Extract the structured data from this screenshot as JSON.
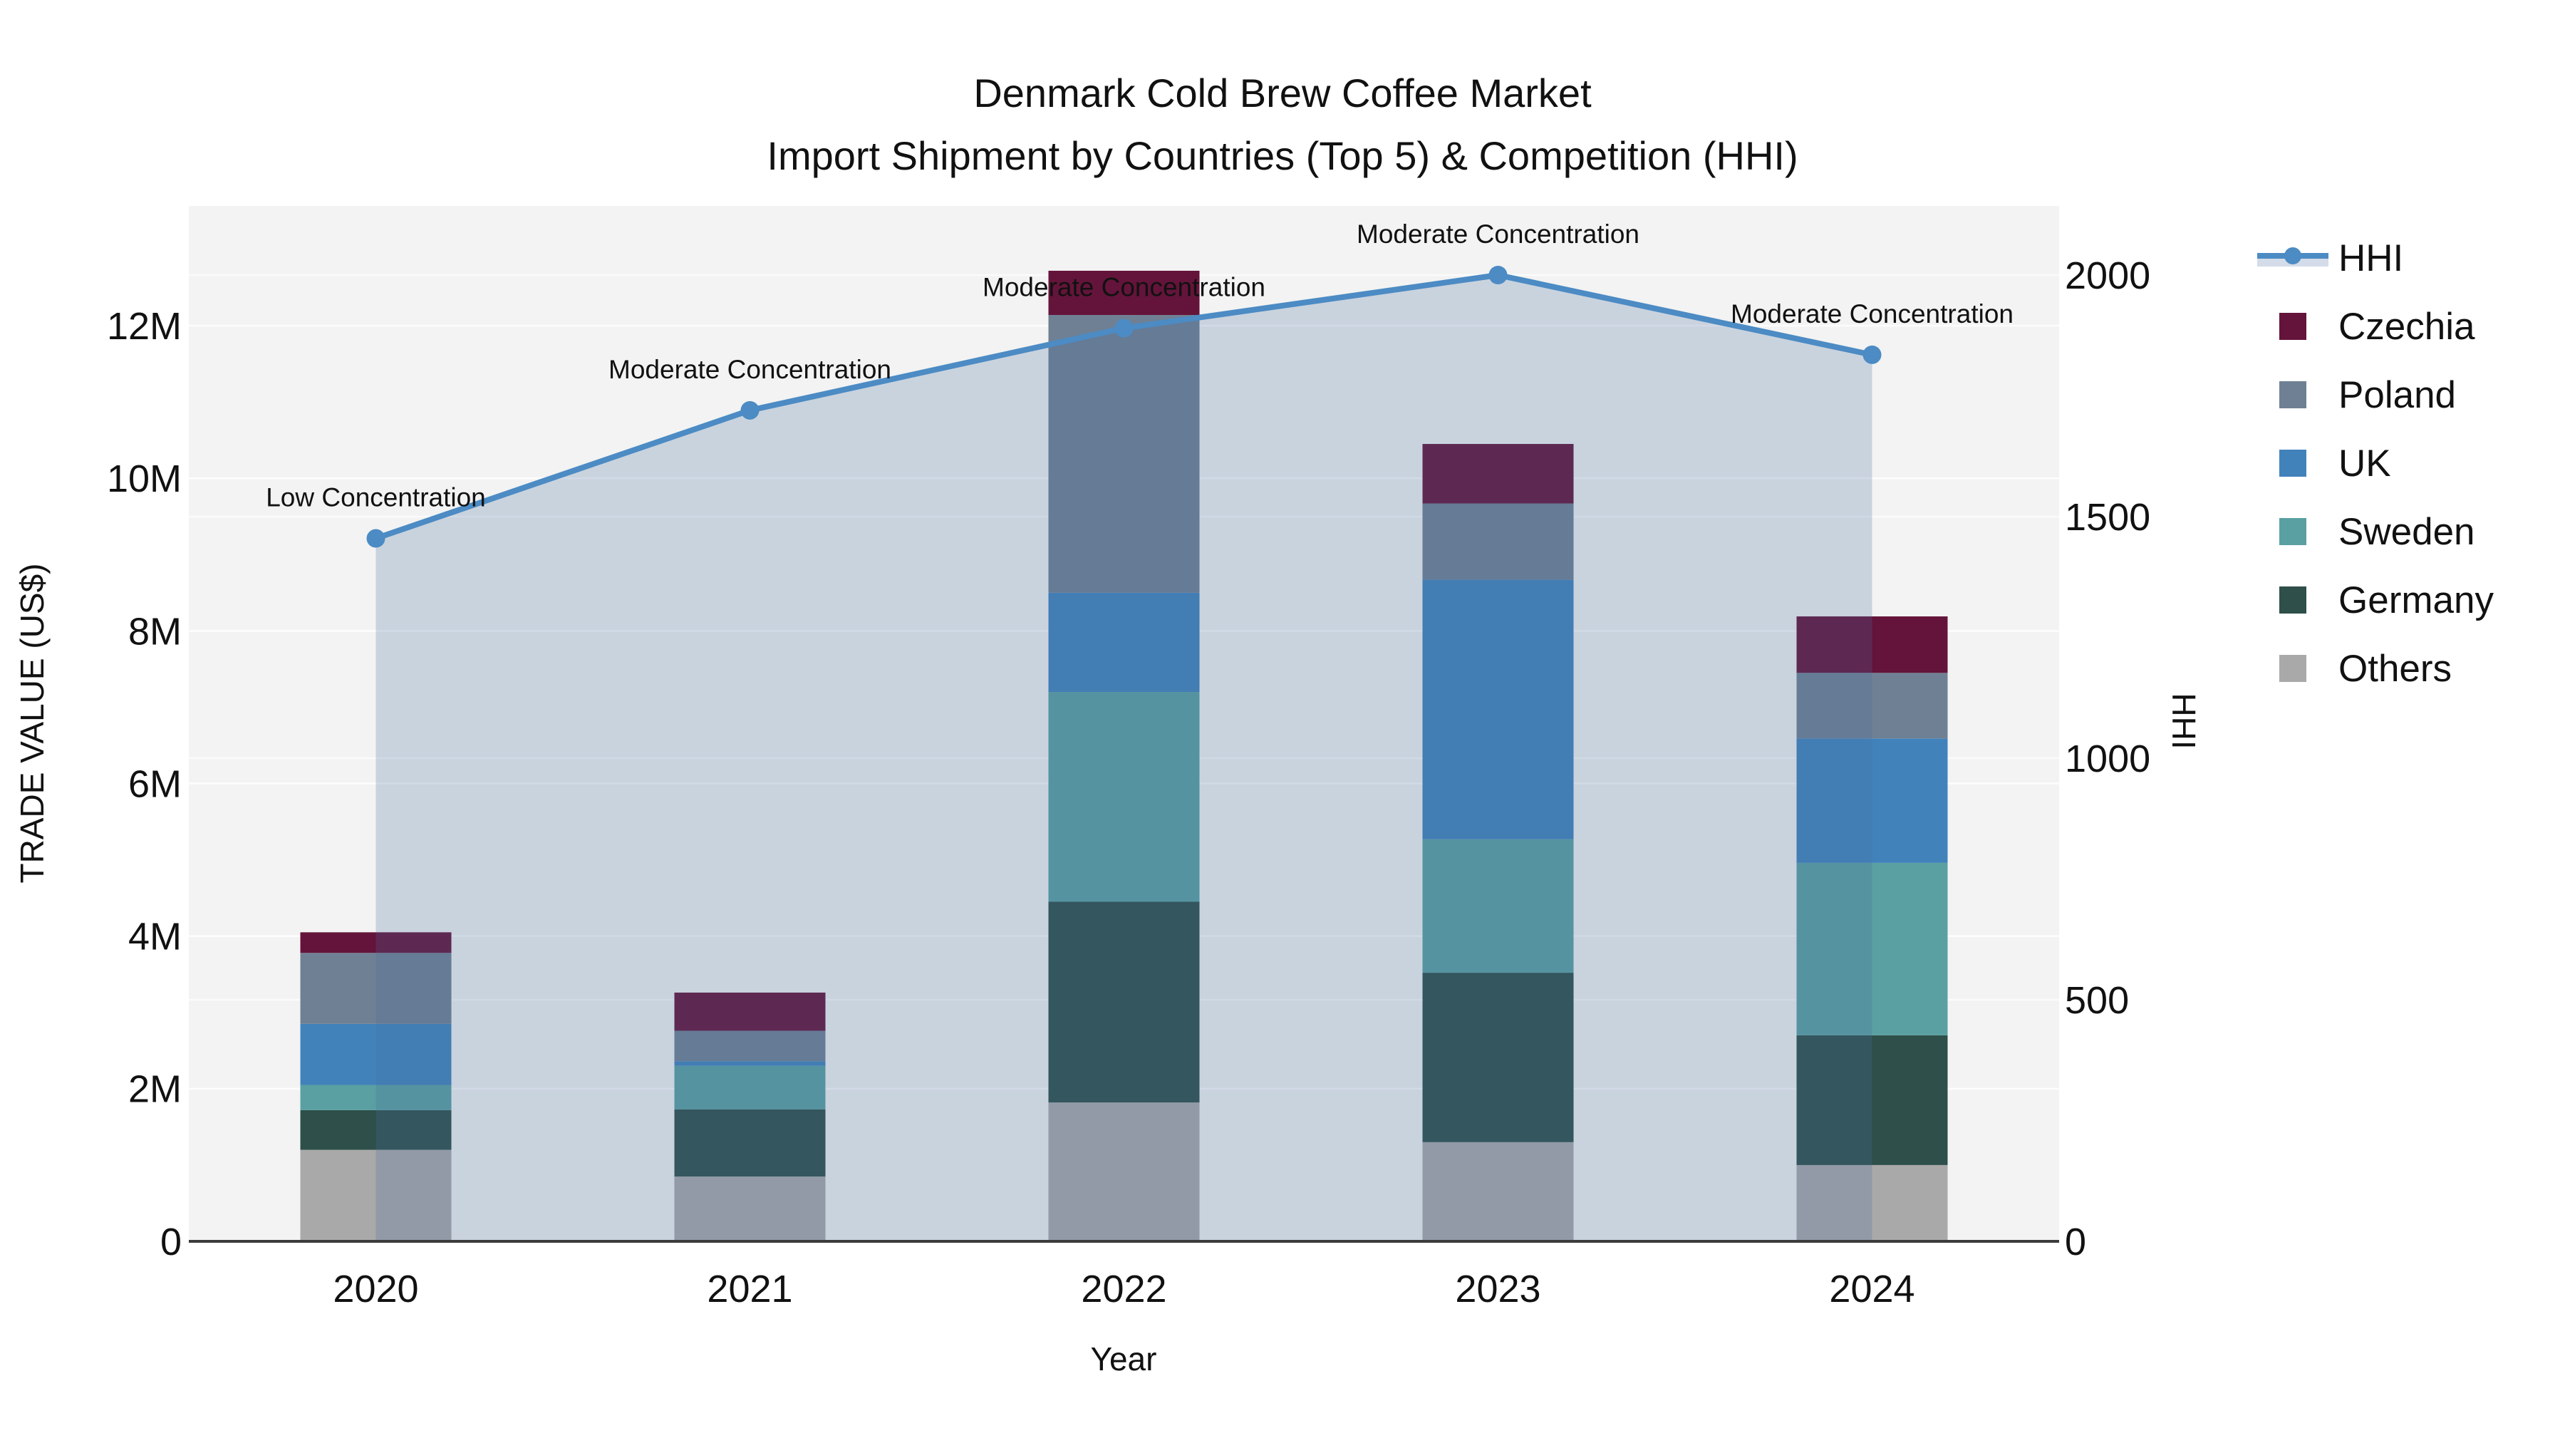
{
  "title": {
    "line1": "Denmark Cold Brew Coffee Market",
    "line2": "Import Shipment by Countries (Top 5) & Competition (HHI)"
  },
  "axes": {
    "left_title": "TRADE VALUE (US$)",
    "right_title": "HHI",
    "x_title": "Year",
    "left_tick_labels": [
      "0",
      "2M",
      "4M",
      "6M",
      "8M",
      "10M",
      "12M"
    ],
    "left_tick_values": [
      0,
      2,
      4,
      6,
      8,
      10,
      12
    ],
    "right_tick_labels": [
      "0",
      "500",
      "1000",
      "1500",
      "2000"
    ],
    "right_tick_values": [
      0,
      500,
      1000,
      1500,
      2000
    ],
    "x_tick_labels": [
      "2020",
      "2021",
      "2022",
      "2023",
      "2024"
    ]
  },
  "chart_data": {
    "type": "combo-stacked-bar-and-line-area",
    "categories": [
      "2020",
      "2021",
      "2022",
      "2023",
      "2024"
    ],
    "value_unit": "millions US$",
    "series": [
      {
        "name": "Others",
        "color": "#A9A9A9",
        "values": [
          1.2,
          0.85,
          1.82,
          1.3,
          1.0
        ]
      },
      {
        "name": "Germany",
        "color": "#2E4F4A",
        "values": [
          0.52,
          0.88,
          2.63,
          2.22,
          1.7
        ]
      },
      {
        "name": "Sweden",
        "color": "#5AA0A2",
        "values": [
          0.33,
          0.57,
          2.75,
          1.75,
          2.26
        ]
      },
      {
        "name": "UK",
        "color": "#4182BB",
        "values": [
          0.8,
          0.06,
          1.3,
          3.4,
          1.63
        ]
      },
      {
        "name": "Poland",
        "color": "#6F8094",
        "values": [
          0.93,
          0.4,
          3.64,
          1.0,
          0.86
        ]
      },
      {
        "name": "Czechia",
        "color": "#64143A",
        "values": [
          0.27,
          0.5,
          0.58,
          0.78,
          0.74
        ]
      }
    ],
    "bar_totals": [
      4.05,
      3.26,
      12.72,
      10.45,
      8.19
    ],
    "hhi": {
      "name": "HHI",
      "line_color": "#4C8BC4",
      "area_fill": "rgba(70,107,157,0.24)",
      "values": [
        1455,
        1720,
        1890,
        2000,
        1835
      ],
      "annotations": [
        "Low Concentration",
        "Moderate Concentration",
        "Moderate Concentration",
        "Moderate Concentration",
        "Moderate Concentration"
      ]
    },
    "y_left": {
      "label": "TRADE VALUE (US$)",
      "ticks": [
        "0",
        "2M",
        "4M",
        "6M",
        "8M",
        "10M",
        "12M"
      ],
      "range_M": [
        0,
        13.57
      ],
      "grid": true
    },
    "y_right": {
      "label": "HHI",
      "ticks": [
        "0",
        "500",
        "1000",
        "1500",
        "2000"
      ],
      "range": [
        0,
        2143
      ],
      "grid": true
    },
    "xlabel": "Year",
    "legend_position": "right",
    "plot_background": "#F2F3F2",
    "gridline_color": "#FFFFFF",
    "axis_line_color": "#3B3B3B"
  },
  "legend": [
    {
      "label": "HHI",
      "type": "line",
      "color": "#4C8BC4",
      "band": "rgba(70,107,157,0.24)"
    },
    {
      "label": "Czechia",
      "type": "swatch",
      "color": "#64143A"
    },
    {
      "label": "Poland",
      "type": "swatch",
      "color": "#6F8094"
    },
    {
      "label": "UK",
      "type": "swatch",
      "color": "#4182BB"
    },
    {
      "label": "Sweden",
      "type": "swatch",
      "color": "#5AA0A2"
    },
    {
      "label": "Germany",
      "type": "swatch",
      "color": "#2E4F4A"
    },
    {
      "label": "Others",
      "type": "swatch",
      "color": "#A9A9A9"
    }
  ]
}
